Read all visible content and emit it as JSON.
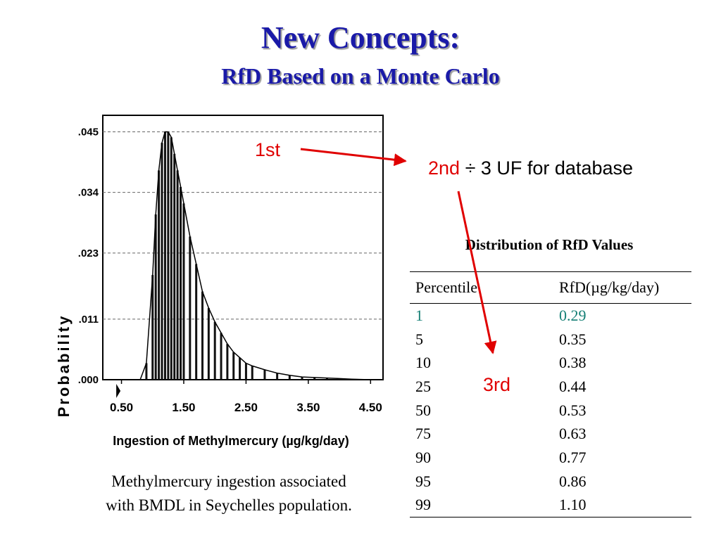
{
  "title": {
    "line1": "New Concepts:",
    "line2": "RfD Based on a Monte Carlo"
  },
  "chart_data": {
    "type": "bar",
    "xlabel": "Ingestion of Methylmercury (µg/kg/day)",
    "ylabel": "Probability",
    "xticks": [
      "0.50",
      "1.50",
      "2.50",
      "3.50",
      "4.50"
    ],
    "yticks": [
      ".000",
      ".011",
      ".023",
      ".034",
      ".045"
    ],
    "xlim": [
      0.2,
      4.7
    ],
    "ylim": [
      0,
      0.048
    ],
    "grid": true,
    "x": [
      0.8,
      0.9,
      1.0,
      1.05,
      1.1,
      1.15,
      1.2,
      1.25,
      1.3,
      1.35,
      1.4,
      1.45,
      1.5,
      1.6,
      1.7,
      1.8,
      1.9,
      2.0,
      2.1,
      2.2,
      2.3,
      2.4,
      2.5,
      2.6,
      2.8,
      3.0,
      3.2,
      3.4,
      3.6,
      3.8,
      4.0,
      4.2,
      4.5
    ],
    "values": [
      0.0,
      0.003,
      0.019,
      0.03,
      0.038,
      0.043,
      0.045,
      0.045,
      0.044,
      0.041,
      0.038,
      0.035,
      0.032,
      0.026,
      0.021,
      0.016,
      0.013,
      0.0105,
      0.0085,
      0.0065,
      0.005,
      0.004,
      0.003,
      0.0025,
      0.0018,
      0.0012,
      0.0008,
      0.0005,
      0.0004,
      0.0003,
      0.0002,
      0.0001,
      0.0
    ]
  },
  "caption": {
    "line1": "Methylmercury ingestion associated",
    "line2": "with BMDL in Seychelles population."
  },
  "annotations": {
    "first": "1st",
    "second_prefix": "2nd",
    "second_text": " ÷ 3 UF for database",
    "third": "3rd"
  },
  "table": {
    "title": "Distribution of RfD Values",
    "headers": [
      "Percentile",
      "RfD(µg/kg/day)"
    ],
    "rows": [
      [
        "1",
        "0.29"
      ],
      [
        "5",
        "0.35"
      ],
      [
        "10",
        "0.38"
      ],
      [
        "25",
        "0.44"
      ],
      [
        "50",
        "0.53"
      ],
      [
        "75",
        "0.63"
      ],
      [
        "90",
        "0.77"
      ],
      [
        "95",
        "0.86"
      ],
      [
        "99",
        "1.10"
      ]
    ],
    "highlight_color": "#157f75"
  },
  "colors": {
    "title": "#1a1aa8",
    "annotation": "#e00000",
    "arrow": "#e00000"
  }
}
